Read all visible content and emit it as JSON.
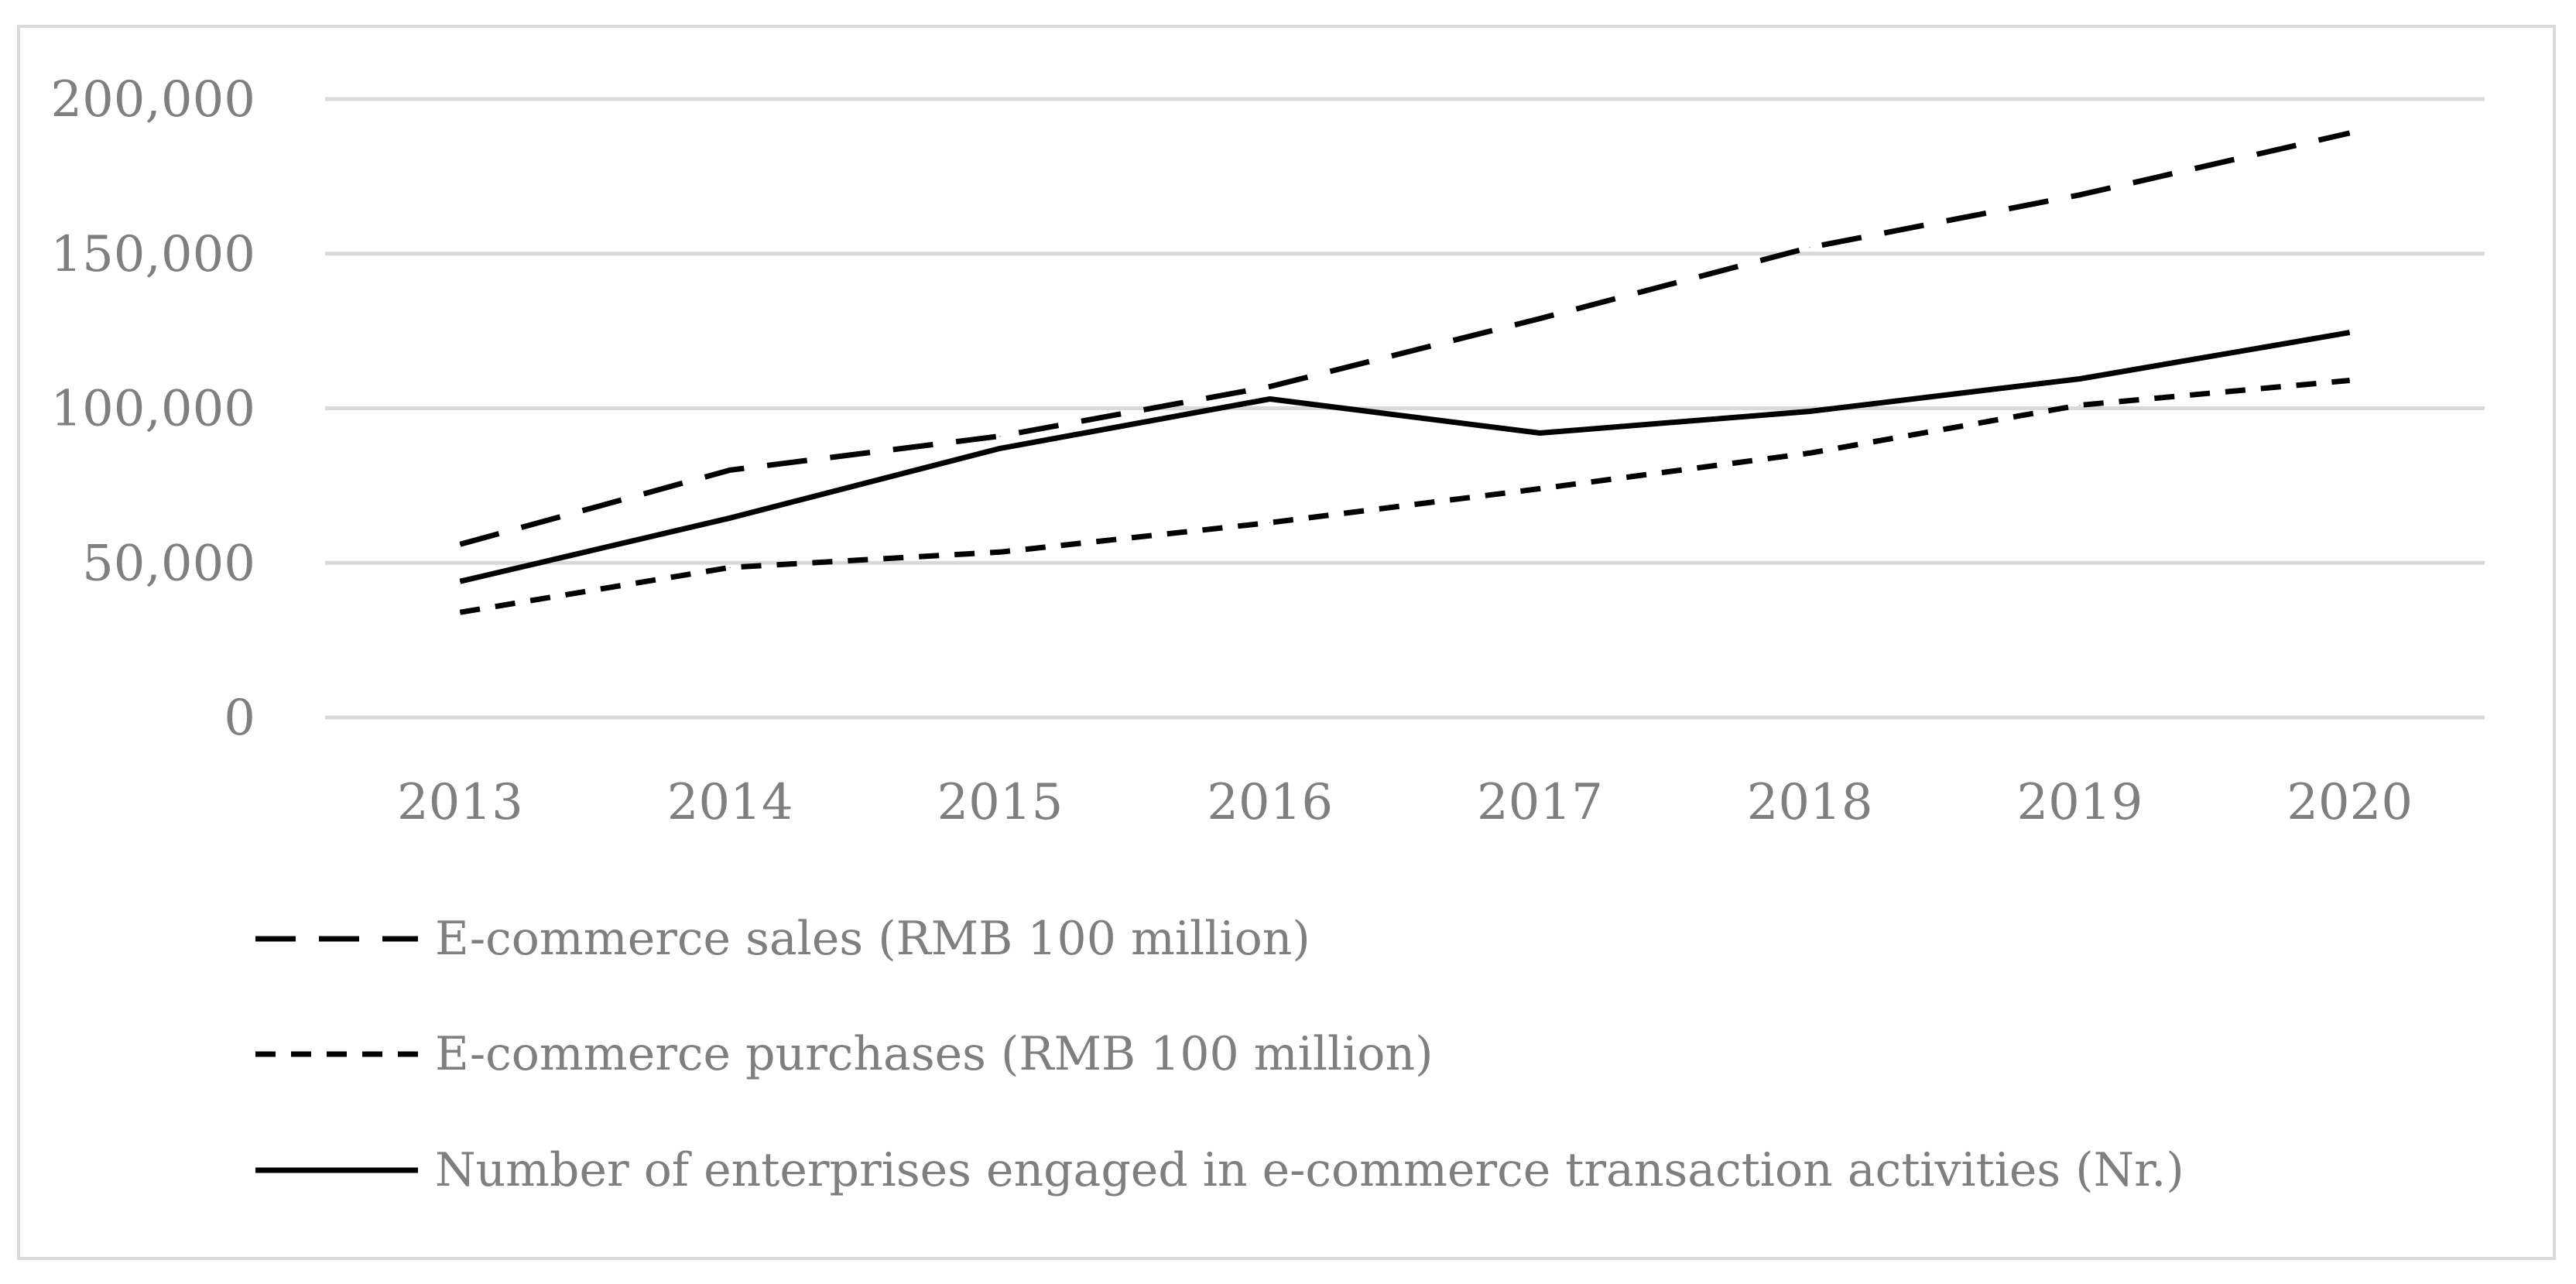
{
  "chart_data": {
    "type": "line",
    "x": [
      "2013",
      "2014",
      "2015",
      "2016",
      "2017",
      "2018",
      "2019",
      "2020"
    ],
    "ylim": [
      0,
      200000
    ],
    "yticks": [
      0,
      50000,
      100000,
      150000,
      200000
    ],
    "ytick_labels": [
      "0",
      "50,000",
      "100,000",
      "150,000",
      "200,000"
    ],
    "grid": true,
    "legend_position": "bottom",
    "series": [
      {
        "name": "E-commerce sales (RMB 100 million)",
        "style": "long-dash",
        "color": "#000000",
        "values": [
          56000,
          80000,
          91000,
          107000,
          129000,
          152000,
          169000,
          189000
        ]
      },
      {
        "name": "E-commerce purchases (RMB 100 million)",
        "style": "short-dash",
        "color": "#000000",
        "values": [
          34000,
          48500,
          53500,
          63000,
          74000,
          85500,
          101000,
          109000
        ]
      },
      {
        "name": "Number of enterprises engaged in e-commerce transaction activities (Nr.)",
        "style": "solid",
        "color": "#000000",
        "values": [
          44000,
          64500,
          87000,
          103000,
          92000,
          99000,
          109500,
          124500
        ]
      }
    ]
  }
}
